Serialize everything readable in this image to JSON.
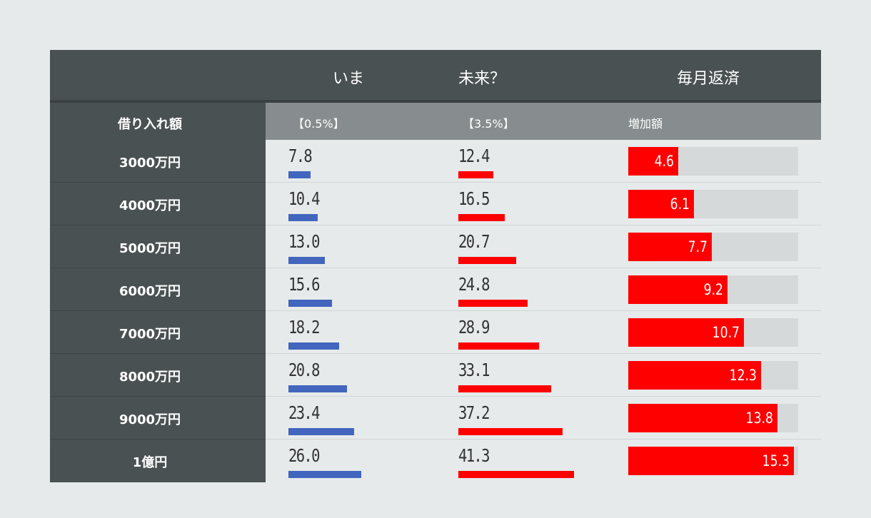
{
  "header": {
    "now_label": "いま",
    "future_label": "未来？",
    "monthly_label": "毎月返済"
  },
  "subheader": {
    "loan_label": "借り入れ額",
    "now_rate": "【0.5%】",
    "future_rate": "【3.5%】",
    "increase_label": "増加額"
  },
  "colors": {
    "now_bar": "#4265bd",
    "future_bar": "#ff0000",
    "increase_bar": "#ff0000",
    "track": "#d5d9da",
    "dark_band": "#4a5152",
    "sub_band": "#878d8e",
    "background": "#e6eaeb"
  },
  "chart_data": {
    "type": "table",
    "categories": [
      "3000万円",
      "4000万円",
      "5000万円",
      "6000万円",
      "7000万円",
      "8000万円",
      "9000万円",
      "1億円"
    ],
    "series": [
      {
        "name": "【0.5%】",
        "values": [
          7.8,
          10.4,
          13.0,
          15.6,
          18.2,
          20.8,
          23.4,
          26.0
        ]
      },
      {
        "name": "【3.5%】",
        "values": [
          12.4,
          16.5,
          20.7,
          24.8,
          28.9,
          33.1,
          37.2,
          41.3
        ]
      },
      {
        "name": "増加額",
        "values": [
          4.6,
          6.1,
          7.7,
          9.2,
          10.7,
          12.3,
          13.8,
          15.3
        ]
      }
    ],
    "value_labels": {
      "now": [
        "7.8",
        "10.4",
        "13.0",
        "15.6",
        "18.2",
        "20.8",
        "23.4",
        "26.0"
      ],
      "future": [
        "12.4",
        "16.5",
        "20.7",
        "24.8",
        "28.9",
        "33.1",
        "37.2",
        "41.3"
      ],
      "increase": [
        "4.6",
        "6.1",
        "7.7",
        "9.2",
        "10.7",
        "12.3",
        "13.8",
        "15.3"
      ]
    },
    "increase_axis_max": 15.7,
    "grid": false
  }
}
